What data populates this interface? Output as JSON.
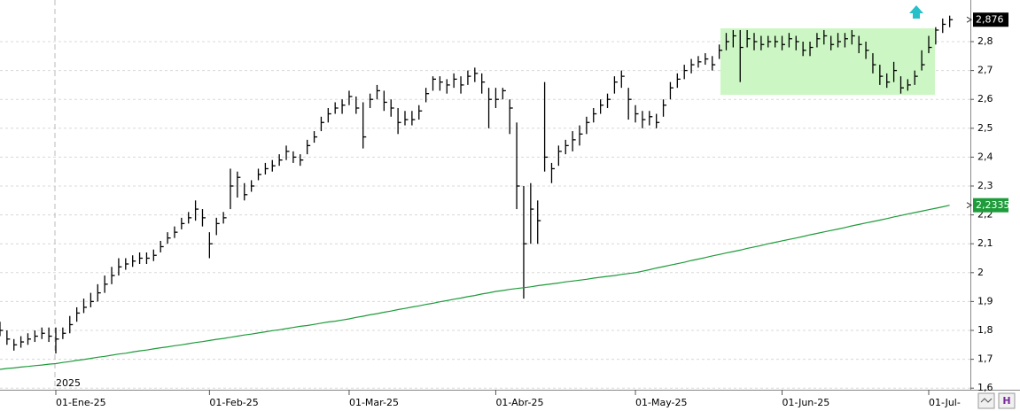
{
  "chart_data": {
    "type": "ohlc",
    "year_label": "2025",
    "categories": [
      null,
      null,
      null,
      null,
      null,
      null,
      null,
      null,
      "01-Ene-25",
      null,
      null,
      null,
      null,
      null,
      null,
      null,
      null,
      null,
      null,
      null,
      null,
      null,
      null,
      null,
      null,
      null,
      null,
      null,
      null,
      null,
      "01-Feb-25",
      null,
      null,
      null,
      null,
      null,
      null,
      null,
      null,
      null,
      null,
      null,
      null,
      null,
      null,
      null,
      null,
      null,
      null,
      null,
      "01-Mar-25",
      null,
      null,
      null,
      null,
      null,
      null,
      null,
      null,
      null,
      null,
      null,
      null,
      null,
      null,
      null,
      null,
      null,
      null,
      null,
      null,
      "01-Abr-25",
      null,
      null,
      null,
      null,
      null,
      null,
      null,
      null,
      null,
      null,
      null,
      null,
      null,
      null,
      null,
      null,
      null,
      null,
      null,
      "01-May-25",
      null,
      null,
      null,
      null,
      null,
      null,
      null,
      null,
      null,
      null,
      null,
      null,
      null,
      null,
      null,
      null,
      null,
      null,
      null,
      null,
      "01-Jun-25",
      null,
      null,
      null,
      null,
      null,
      null,
      null,
      null,
      null,
      null,
      null,
      null,
      null,
      null,
      null,
      null,
      null,
      null,
      null,
      null,
      "01-Jul-",
      null,
      null,
      null
    ],
    "ohlc": {
      "color": "#000000",
      "high": [
        1.83,
        1.8,
        1.77,
        1.78,
        1.79,
        1.8,
        1.81,
        1.81,
        1.81,
        1.81,
        1.85,
        1.88,
        1.91,
        1.93,
        1.96,
        1.99,
        2.02,
        2.05,
        2.05,
        2.06,
        2.07,
        2.07,
        2.08,
        2.11,
        2.14,
        2.16,
        2.19,
        2.21,
        2.25,
        2.22,
        2.14,
        2.19,
        2.21,
        2.36,
        2.35,
        2.31,
        2.32,
        2.36,
        2.38,
        2.39,
        2.41,
        2.44,
        2.42,
        2.41,
        2.46,
        2.49,
        2.54,
        2.57,
        2.59,
        2.6,
        2.63,
        2.61,
        2.59,
        2.62,
        2.65,
        2.63,
        2.6,
        2.57,
        2.56,
        2.56,
        2.58,
        2.64,
        2.68,
        2.68,
        2.67,
        2.69,
        2.68,
        2.7,
        2.71,
        2.69,
        2.64,
        2.64,
        2.64,
        2.6,
        2.52,
        2.3,
        2.31,
        2.25,
        2.66,
        2.38,
        2.44,
        2.46,
        2.49,
        2.51,
        2.54,
        2.57,
        2.6,
        2.62,
        2.68,
        2.7,
        2.64,
        2.58,
        2.56,
        2.56,
        2.55,
        2.6,
        2.66,
        2.69,
        2.72,
        2.74,
        2.75,
        2.76,
        2.75,
        2.79,
        2.83,
        2.84,
        2.84,
        2.84,
        2.83,
        2.82,
        2.82,
        2.82,
        2.82,
        2.83,
        2.82,
        2.8,
        2.8,
        2.83,
        2.84,
        2.82,
        2.83,
        2.83,
        2.84,
        2.82,
        2.8,
        2.76,
        2.72,
        2.69,
        2.73,
        2.68,
        2.67,
        2.7,
        2.77,
        2.82,
        2.85,
        2.88,
        2.89
      ],
      "low": [
        1.78,
        1.75,
        1.73,
        1.74,
        1.75,
        1.76,
        1.77,
        1.76,
        1.72,
        1.77,
        1.79,
        1.83,
        1.86,
        1.88,
        1.9,
        1.93,
        1.96,
        1.99,
        2.01,
        2.02,
        2.03,
        2.03,
        2.04,
        2.07,
        2.1,
        2.12,
        2.15,
        2.17,
        2.18,
        2.16,
        2.05,
        2.13,
        2.17,
        2.22,
        2.26,
        2.25,
        2.28,
        2.32,
        2.34,
        2.35,
        2.37,
        2.39,
        2.38,
        2.37,
        2.41,
        2.45,
        2.49,
        2.52,
        2.55,
        2.55,
        2.58,
        2.55,
        2.43,
        2.57,
        2.6,
        2.56,
        2.54,
        2.48,
        2.51,
        2.51,
        2.53,
        2.59,
        2.63,
        2.63,
        2.62,
        2.64,
        2.62,
        2.65,
        2.66,
        2.62,
        2.5,
        2.57,
        2.6,
        2.48,
        2.22,
        1.91,
        2.1,
        2.1,
        2.35,
        2.31,
        2.37,
        2.41,
        2.42,
        2.44,
        2.48,
        2.52,
        2.55,
        2.57,
        2.62,
        2.64,
        2.53,
        2.52,
        2.5,
        2.51,
        2.5,
        2.54,
        2.6,
        2.64,
        2.67,
        2.69,
        2.71,
        2.72,
        2.7,
        2.74,
        2.77,
        2.78,
        2.66,
        2.78,
        2.77,
        2.77,
        2.78,
        2.78,
        2.77,
        2.78,
        2.77,
        2.75,
        2.75,
        2.78,
        2.79,
        2.77,
        2.78,
        2.78,
        2.79,
        2.76,
        2.74,
        2.69,
        2.65,
        2.64,
        2.66,
        2.62,
        2.63,
        2.65,
        2.7,
        2.76,
        2.79,
        2.83,
        2.85
      ],
      "close": [
        1.8,
        1.77,
        1.75,
        1.76,
        1.77,
        1.78,
        1.79,
        1.78,
        1.77,
        1.79,
        1.82,
        1.86,
        1.88,
        1.9,
        1.93,
        1.96,
        1.99,
        2.02,
        2.03,
        2.04,
        2.05,
        2.05,
        2.06,
        2.09,
        2.12,
        2.14,
        2.17,
        2.19,
        2.22,
        2.19,
        2.1,
        2.17,
        2.19,
        2.3,
        2.33,
        2.27,
        2.3,
        2.34,
        2.36,
        2.37,
        2.39,
        2.42,
        2.4,
        2.39,
        2.44,
        2.47,
        2.52,
        2.55,
        2.57,
        2.58,
        2.61,
        2.57,
        2.47,
        2.6,
        2.63,
        2.59,
        2.57,
        2.52,
        2.53,
        2.53,
        2.56,
        2.62,
        2.67,
        2.66,
        2.65,
        2.67,
        2.65,
        2.68,
        2.69,
        2.66,
        2.6,
        2.6,
        2.63,
        2.57,
        2.3,
        2.1,
        2.22,
        2.18,
        2.4,
        2.36,
        2.42,
        2.44,
        2.46,
        2.48,
        2.52,
        2.55,
        2.58,
        2.6,
        2.66,
        2.68,
        2.6,
        2.55,
        2.53,
        2.54,
        2.52,
        2.58,
        2.64,
        2.67,
        2.7,
        2.72,
        2.73,
        2.74,
        2.72,
        2.77,
        2.8,
        2.82,
        2.78,
        2.81,
        2.8,
        2.79,
        2.8,
        2.8,
        2.79,
        2.81,
        2.8,
        2.77,
        2.78,
        2.81,
        2.82,
        2.79,
        2.8,
        2.81,
        2.82,
        2.79,
        2.77,
        2.72,
        2.68,
        2.66,
        2.7,
        2.64,
        2.65,
        2.68,
        2.72,
        2.78,
        2.84,
        2.86,
        2.876
      ],
      "last_label": "2,876"
    },
    "line": {
      "color": "#1e9b3a",
      "values": [
        1.665,
        1.668,
        1.67,
        1.673,
        1.675,
        1.678,
        1.68,
        1.683,
        1.685,
        1.689,
        1.692,
        1.696,
        1.699,
        1.703,
        1.707,
        1.71,
        1.714,
        1.718,
        1.721,
        1.725,
        1.729,
        1.732,
        1.736,
        1.74,
        1.743,
        1.747,
        1.75,
        1.754,
        1.758,
        1.761,
        1.765,
        1.769,
        1.772,
        1.776,
        1.78,
        1.784,
        1.787,
        1.791,
        1.795,
        1.799,
        1.802,
        1.806,
        1.81,
        1.814,
        1.817,
        1.821,
        1.825,
        1.829,
        1.832,
        1.836,
        1.84,
        1.845,
        1.849,
        1.854,
        1.858,
        1.863,
        1.867,
        1.872,
        1.876,
        1.881,
        1.885,
        1.89,
        1.894,
        1.899,
        1.903,
        1.908,
        1.912,
        1.917,
        1.921,
        1.926,
        1.93,
        1.935,
        1.938,
        1.942,
        1.945,
        1.948,
        1.951,
        1.955,
        1.958,
        1.961,
        1.964,
        1.968,
        1.971,
        1.974,
        1.977,
        1.981,
        1.984,
        1.987,
        1.99,
        1.994,
        1.997,
        2.0,
        2.005,
        2.01,
        2.016,
        2.021,
        2.026,
        2.031,
        2.036,
        2.042,
        2.047,
        2.052,
        2.058,
        2.063,
        2.068,
        2.073,
        2.078,
        2.084,
        2.089,
        2.094,
        2.1,
        2.105,
        2.11,
        2.115,
        2.12,
        2.125,
        2.131,
        2.136,
        2.141,
        2.146,
        2.151,
        2.156,
        2.162,
        2.167,
        2.172,
        2.177,
        2.182,
        2.187,
        2.193,
        2.198,
        2.203,
        2.208,
        2.213,
        2.218,
        2.223,
        2.228,
        2.2335
      ],
      "last_label": "2,2335"
    },
    "ylim": [
      1.6,
      2.9
    ],
    "yticks": [
      {
        "value": 1.6,
        "label": "1,6"
      },
      {
        "value": 1.7,
        "label": "1,7"
      },
      {
        "value": 1.8,
        "label": "1,8"
      },
      {
        "value": 1.9,
        "label": "1,9"
      },
      {
        "value": 2,
        "label": "2"
      },
      {
        "value": 2.1,
        "label": "2,1"
      },
      {
        "value": 2.2,
        "label": "2,2"
      },
      {
        "value": 2.3,
        "label": "2,3"
      },
      {
        "value": 2.4,
        "label": "2,4"
      },
      {
        "value": 2.5,
        "label": "2,5"
      },
      {
        "value": 2.6,
        "label": "2,6"
      },
      {
        "value": 2.7,
        "label": "2,7"
      },
      {
        "value": 2.8,
        "label": "2,8"
      }
    ],
    "grid": true
  }
}
